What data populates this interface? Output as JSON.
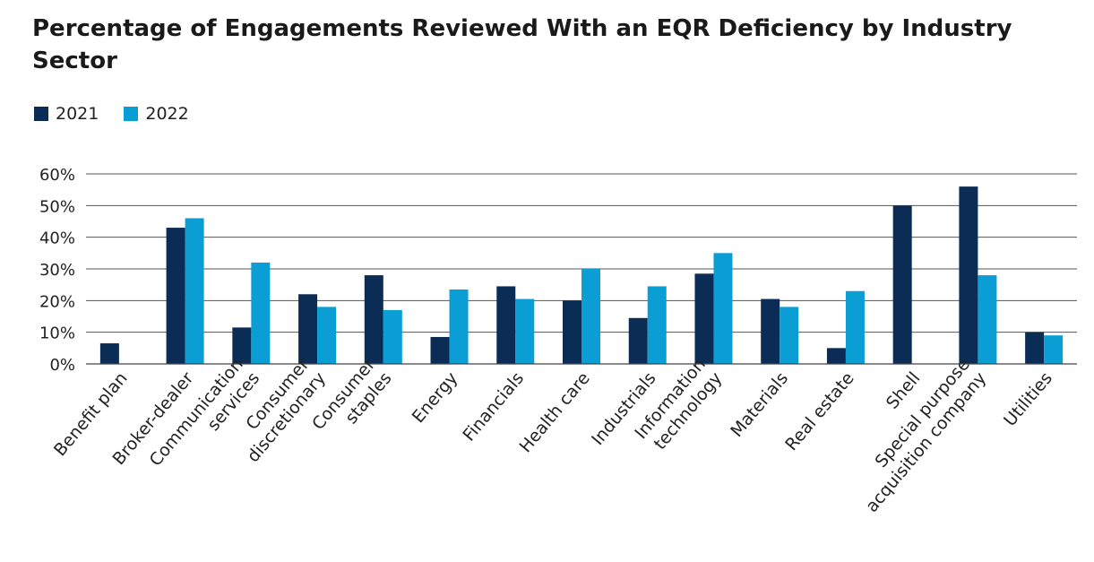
{
  "chart_data": {
    "type": "bar",
    "title": "Percentage of Engagements Reviewed With an EQR Deficiency by Industry Sector",
    "categories": [
      [
        "Benefit plan"
      ],
      [
        "Broker-dealer"
      ],
      [
        "Communication",
        "services"
      ],
      [
        "Consumer",
        "discretionary"
      ],
      [
        "Consumer",
        "staples"
      ],
      [
        "Energy"
      ],
      [
        "Financials"
      ],
      [
        "Health care"
      ],
      [
        "Industrials"
      ],
      [
        "Information",
        "technology"
      ],
      [
        "Materials"
      ],
      [
        "Real estate"
      ],
      [
        "Shell"
      ],
      [
        "Special purpose",
        "acquisition company"
      ],
      [
        "Utilities"
      ]
    ],
    "series": [
      {
        "name": "2021",
        "color": "#0b2d55",
        "values": [
          6.5,
          43,
          11.5,
          22,
          28,
          8.5,
          24.5,
          20,
          14.5,
          28.5,
          20.5,
          5,
          50,
          56,
          10
        ]
      },
      {
        "name": "2022",
        "color": "#0a9ed4",
        "values": [
          0,
          46,
          32,
          18,
          17,
          23.5,
          20.5,
          30,
          24.5,
          35,
          18,
          23,
          0,
          28,
          9
        ]
      }
    ],
    "y_ticks": [
      "0%",
      "10%",
      "20%",
      "30%",
      "40%",
      "50%",
      "60%"
    ],
    "ylim": [
      0,
      60
    ],
    "xlabel": "",
    "ylabel": "",
    "legend_position": "top-left",
    "grid": true
  }
}
